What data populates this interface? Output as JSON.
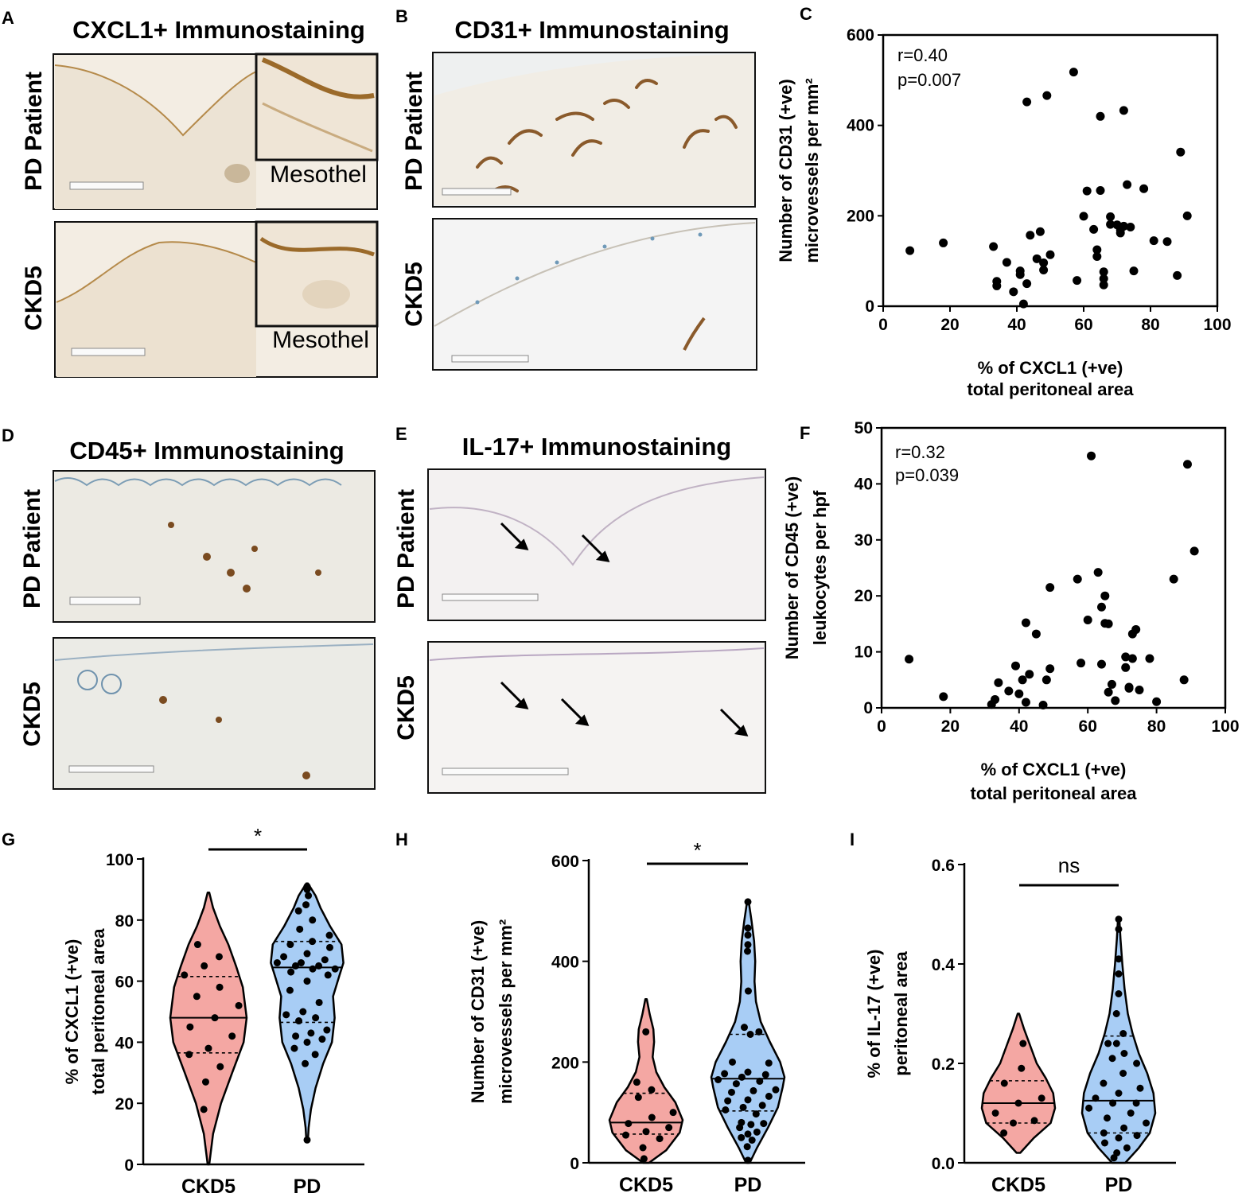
{
  "figure": {
    "panel_labels": [
      "A",
      "B",
      "C",
      "D",
      "E",
      "F",
      "G",
      "H",
      "I"
    ],
    "panel_a": {
      "title": "CXCL1+ Immunostaining",
      "row_labels": [
        "PD Patient",
        "CKD5"
      ],
      "inset_label": "Mesothel"
    },
    "panel_b": {
      "title": "CD31+ Immunostaining",
      "row_labels": [
        "PD Patient",
        "CKD5"
      ]
    },
    "panel_d": {
      "title": "CD45+ Immunostaining",
      "row_labels": [
        "PD Patient",
        "CKD5"
      ]
    },
    "panel_e": {
      "title": "IL-17+ Immunostaining",
      "row_labels": [
        "PD Patient",
        "CKD5"
      ]
    },
    "colors": {
      "ckd5_fill": "#f4a7a3",
      "pd_fill": "#a8cdf5",
      "tissue": "#f2ece2",
      "stain_brown": "#8a5a2b"
    }
  },
  "chart_data": [
    {
      "panel": "C",
      "type": "scatter",
      "xlabel": [
        "% of CXCL1 (+ve)",
        "total peritoneal area"
      ],
      "ylabel": [
        "Number of CD31 (+ve)",
        "microvessels per mm²"
      ],
      "xlim": [
        0,
        100
      ],
      "ylim": [
        0,
        600
      ],
      "xticks": [
        "0",
        "20",
        "40",
        "60",
        "80",
        "100"
      ],
      "yticks": [
        "0",
        "200",
        "400",
        "600"
      ],
      "stat_r": "r=0.40",
      "stat_p": "p=0.007",
      "points": [
        [
          8,
          123
        ],
        [
          18,
          140
        ],
        [
          33,
          132
        ],
        [
          34,
          45
        ],
        [
          34,
          55
        ],
        [
          37,
          97
        ],
        [
          39,
          32
        ],
        [
          41,
          70
        ],
        [
          41,
          78
        ],
        [
          42,
          5
        ],
        [
          43,
          50
        ],
        [
          43,
          452
        ],
        [
          44,
          157
        ],
        [
          46,
          105
        ],
        [
          47,
          165
        ],
        [
          48,
          80
        ],
        [
          48,
          96
        ],
        [
          49,
          466
        ],
        [
          50,
          114
        ],
        [
          57,
          518
        ],
        [
          58,
          57
        ],
        [
          60,
          199
        ],
        [
          61,
          255
        ],
        [
          63,
          170
        ],
        [
          64,
          110
        ],
        [
          64,
          125
        ],
        [
          65,
          420
        ],
        [
          65,
          256
        ],
        [
          66,
          61
        ],
        [
          66,
          76
        ],
        [
          66,
          47
        ],
        [
          68,
          181
        ],
        [
          68,
          198
        ],
        [
          70,
          180
        ],
        [
          71,
          162
        ],
        [
          71,
          169
        ],
        [
          72,
          433
        ],
        [
          72,
          177
        ],
        [
          73,
          269
        ],
        [
          74,
          175
        ],
        [
          75,
          78
        ],
        [
          78,
          260
        ],
        [
          81,
          145
        ],
        [
          85,
          143
        ],
        [
          88,
          68
        ],
        [
          89,
          341
        ],
        [
          91,
          200
        ]
      ]
    },
    {
      "panel": "F",
      "type": "scatter",
      "xlabel": [
        "% of CXCL1 (+ve)",
        "total peritoneal area"
      ],
      "ylabel": [
        "Number of CD45 (+ve)",
        "leukocytes per hpf"
      ],
      "xlim": [
        0,
        100
      ],
      "ylim": [
        0,
        50
      ],
      "xticks": [
        "0",
        "20",
        "40",
        "60",
        "80",
        "100"
      ],
      "yticks": [
        "0",
        "10",
        "20",
        "30",
        "40",
        "50"
      ],
      "stat_r": "r=0.32",
      "stat_p": "p=0.039",
      "points": [
        [
          8,
          8.7
        ],
        [
          18,
          2
        ],
        [
          32,
          0.6
        ],
        [
          33,
          1.5
        ],
        [
          34,
          4.5
        ],
        [
          37,
          3
        ],
        [
          39,
          7.5
        ],
        [
          40,
          2.5
        ],
        [
          41,
          5
        ],
        [
          42,
          1
        ],
        [
          42,
          15.2
        ],
        [
          43,
          6
        ],
        [
          45,
          13.2
        ],
        [
          47,
          0.5
        ],
        [
          48,
          5
        ],
        [
          49,
          21.5
        ],
        [
          49,
          7
        ],
        [
          57,
          23
        ],
        [
          58,
          8
        ],
        [
          60,
          15.7
        ],
        [
          61,
          45
        ],
        [
          63,
          24.2
        ],
        [
          64,
          18
        ],
        [
          64,
          7.8
        ],
        [
          65,
          15.1
        ],
        [
          65,
          20
        ],
        [
          66,
          2.8
        ],
        [
          66,
          15
        ],
        [
          67,
          4.2
        ],
        [
          68,
          1.3
        ],
        [
          71,
          9.1
        ],
        [
          71,
          7.2
        ],
        [
          72,
          3.5
        ],
        [
          72,
          3.7
        ],
        [
          73,
          13.2
        ],
        [
          73,
          8.8
        ],
        [
          74,
          14
        ],
        [
          75,
          3.2
        ],
        [
          78,
          8.8
        ],
        [
          80,
          1.1
        ],
        [
          85,
          23
        ],
        [
          88,
          5
        ],
        [
          89,
          43.5
        ],
        [
          91,
          28
        ]
      ]
    },
    {
      "panel": "G",
      "type": "violin",
      "ylabel": [
        "% of CXCL1 (+ve)",
        "total peritoneal area"
      ],
      "categories": [
        "CKD5",
        "PD"
      ],
      "ylim": [
        0,
        100
      ],
      "yticks": [
        "0",
        "20",
        "40",
        "60",
        "80",
        "100"
      ],
      "significance": "*",
      "series": [
        {
          "name": "CKD5",
          "fill": "#f4a7a3",
          "range": [
            0,
            89
          ],
          "median": 48,
          "q1": 36.5,
          "q3": 61.5,
          "profile": [
            [
              0,
              0.02
            ],
            [
              10,
              0.12
            ],
            [
              20,
              0.33
            ],
            [
              30,
              0.62
            ],
            [
              40,
              0.92
            ],
            [
              48,
              1
            ],
            [
              58,
              0.9
            ],
            [
              65,
              0.72
            ],
            [
              72,
              0.52
            ],
            [
              78,
              0.3
            ],
            [
              84,
              0.12
            ],
            [
              89,
              0.02
            ]
          ],
          "points": [
            18,
            27,
            32,
            36,
            38,
            42,
            45,
            48,
            52,
            55,
            58,
            62,
            65,
            68,
            72
          ]
        },
        {
          "name": "PD",
          "fill": "#a8cdf5",
          "range": [
            8,
            92
          ],
          "median": 64.5,
          "q1": 46.5,
          "q3": 73,
          "profile": [
            [
              8,
              0.02
            ],
            [
              12,
              0.04
            ],
            [
              18,
              0.1
            ],
            [
              25,
              0.22
            ],
            [
              33,
              0.42
            ],
            [
              40,
              0.65
            ],
            [
              48,
              0.72
            ],
            [
              55,
              0.68
            ],
            [
              62,
              0.85
            ],
            [
              66,
              0.95
            ],
            [
              72,
              0.9
            ],
            [
              78,
              0.6
            ],
            [
              84,
              0.35
            ],
            [
              88,
              0.22
            ],
            [
              92,
              0.02
            ]
          ],
          "points": [
            8,
            33,
            36,
            38,
            40,
            41,
            42,
            43,
            44,
            47,
            48,
            49,
            50,
            53,
            57,
            60,
            62,
            63,
            64,
            64,
            65,
            65,
            66,
            66,
            67,
            68,
            69,
            71,
            72,
            73,
            75,
            77,
            80,
            83,
            85,
            88,
            90,
            91
          ]
        }
      ]
    },
    {
      "panel": "H",
      "type": "violin",
      "ylabel": [
        "Number of CD31 (+ve)",
        "microvessels per mm²"
      ],
      "categories": [
        "CKD5",
        "PD"
      ],
      "ylim": [
        0,
        600
      ],
      "yticks": [
        "0",
        "200",
        "400",
        "600"
      ],
      "significance": "*",
      "series": [
        {
          "name": "CKD5",
          "fill": "#f4a7a3",
          "range": [
            0,
            325
          ],
          "median": 80,
          "q1": 57,
          "q3": 138,
          "profile": [
            [
              0,
              0.08
            ],
            [
              25,
              0.55
            ],
            [
              60,
              0.92
            ],
            [
              85,
              1
            ],
            [
              120,
              0.8
            ],
            [
              150,
              0.5
            ],
            [
              180,
              0.28
            ],
            [
              210,
              0.18
            ],
            [
              240,
              0.22
            ],
            [
              265,
              0.2
            ],
            [
              295,
              0.1
            ],
            [
              325,
              0.02
            ]
          ],
          "points": [
            8,
            30,
            48,
            55,
            62,
            70,
            78,
            90,
            100,
            130,
            145,
            160,
            260
          ]
        },
        {
          "name": "PD",
          "fill": "#a8cdf5",
          "range": [
            0,
            520
          ],
          "median": 167,
          "q1": 103,
          "q3": 255,
          "profile": [
            [
              0,
              0.05
            ],
            [
              30,
              0.25
            ],
            [
              70,
              0.55
            ],
            [
              110,
              0.82
            ],
            [
              150,
              0.95
            ],
            [
              170,
              1
            ],
            [
              200,
              0.88
            ],
            [
              240,
              0.6
            ],
            [
              280,
              0.35
            ],
            [
              320,
              0.22
            ],
            [
              360,
              0.18
            ],
            [
              400,
              0.2
            ],
            [
              440,
              0.17
            ],
            [
              480,
              0.1
            ],
            [
              520,
              0.02
            ]
          ],
          "points": [
            5,
            32,
            45,
            50,
            57,
            61,
            70,
            76,
            78,
            80,
            97,
            105,
            110,
            114,
            123,
            125,
            132,
            140,
            143,
            145,
            157,
            162,
            165,
            170,
            175,
            177,
            180,
            198,
            200,
            255,
            260,
            269,
            341,
            420,
            433,
            452,
            466,
            518
          ]
        }
      ]
    },
    {
      "panel": "I",
      "type": "violin",
      "ylabel": [
        "% of IL-17 (+ve)",
        "peritoneal area"
      ],
      "categories": [
        "CKD5",
        "PD"
      ],
      "ylim": [
        0,
        0.6
      ],
      "yticks": [
        "0.0",
        "0.2",
        "0.4",
        "0.6"
      ],
      "significance": "ns",
      "series": [
        {
          "name": "CKD5",
          "fill": "#f4a7a3",
          "range": [
            0.02,
            0.3
          ],
          "median": 0.12,
          "q1": 0.08,
          "q3": 0.165,
          "profile": [
            [
              0.02,
              0.05
            ],
            [
              0.05,
              0.42
            ],
            [
              0.08,
              0.88
            ],
            [
              0.11,
              1
            ],
            [
              0.14,
              0.95
            ],
            [
              0.17,
              0.75
            ],
            [
              0.2,
              0.5
            ],
            [
              0.24,
              0.3
            ],
            [
              0.27,
              0.15
            ],
            [
              0.3,
              0.02
            ]
          ],
          "points": [
            0.06,
            0.08,
            0.085,
            0.1,
            0.12,
            0.13,
            0.16,
            0.19,
            0.24
          ]
        },
        {
          "name": "PD",
          "fill": "#a8cdf5",
          "range": [
            0,
            0.49
          ],
          "median": 0.125,
          "q1": 0.06,
          "q3": 0.255,
          "profile": [
            [
              0,
              0.18
            ],
            [
              0.03,
              0.55
            ],
            [
              0.06,
              0.85
            ],
            [
              0.1,
              1
            ],
            [
              0.14,
              0.95
            ],
            [
              0.18,
              0.78
            ],
            [
              0.22,
              0.55
            ],
            [
              0.26,
              0.38
            ],
            [
              0.3,
              0.25
            ],
            [
              0.35,
              0.16
            ],
            [
              0.4,
              0.1
            ],
            [
              0.45,
              0.05
            ],
            [
              0.49,
              0.02
            ]
          ],
          "points": [
            0.01,
            0.02,
            0.03,
            0.04,
            0.05,
            0.055,
            0.06,
            0.07,
            0.08,
            0.09,
            0.1,
            0.11,
            0.12,
            0.12,
            0.13,
            0.14,
            0.15,
            0.16,
            0.18,
            0.2,
            0.21,
            0.22,
            0.24,
            0.24,
            0.26,
            0.3,
            0.34,
            0.38,
            0.41,
            0.47,
            0.49
          ]
        }
      ]
    }
  ]
}
